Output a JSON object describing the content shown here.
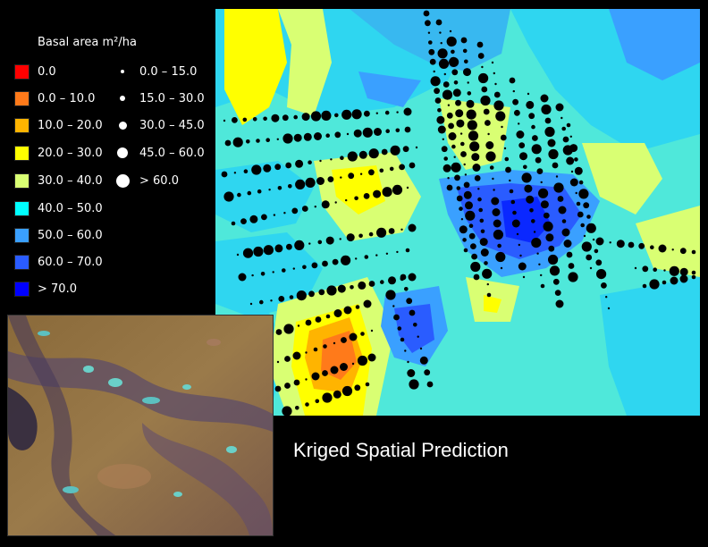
{
  "legend": {
    "title": "Basal area m²/ha",
    "classes": [
      {
        "label": "0.0",
        "color": "#ff0000"
      },
      {
        "label": "0.0 – 10.0",
        "color": "#ff7a1a"
      },
      {
        "label": "10.0 – 20.0",
        "color": "#ffb400"
      },
      {
        "label": "20.0 – 30.0",
        "color": "#ffff00"
      },
      {
        "label": "30.0 – 40.0",
        "color": "#d9ff73"
      },
      {
        "label": "40.0 – 50.0",
        "color": "#00ffff"
      },
      {
        "label": "50.0 – 60.0",
        "color": "#3aa0ff"
      },
      {
        "label": "60.0 – 70.0",
        "color": "#2a5cff"
      },
      {
        "label": "> 70.0",
        "color": "#0000ff"
      }
    ],
    "points": [
      {
        "label": "0.0 – 15.0"
      },
      {
        "label": "15.0 – 30.0"
      },
      {
        "label": "30.0 – 45.0"
      },
      {
        "label": "45.0 – 60.0"
      },
      {
        "label": "> 60.0"
      }
    ]
  },
  "caption": "Kriged Spatial Prediction"
}
